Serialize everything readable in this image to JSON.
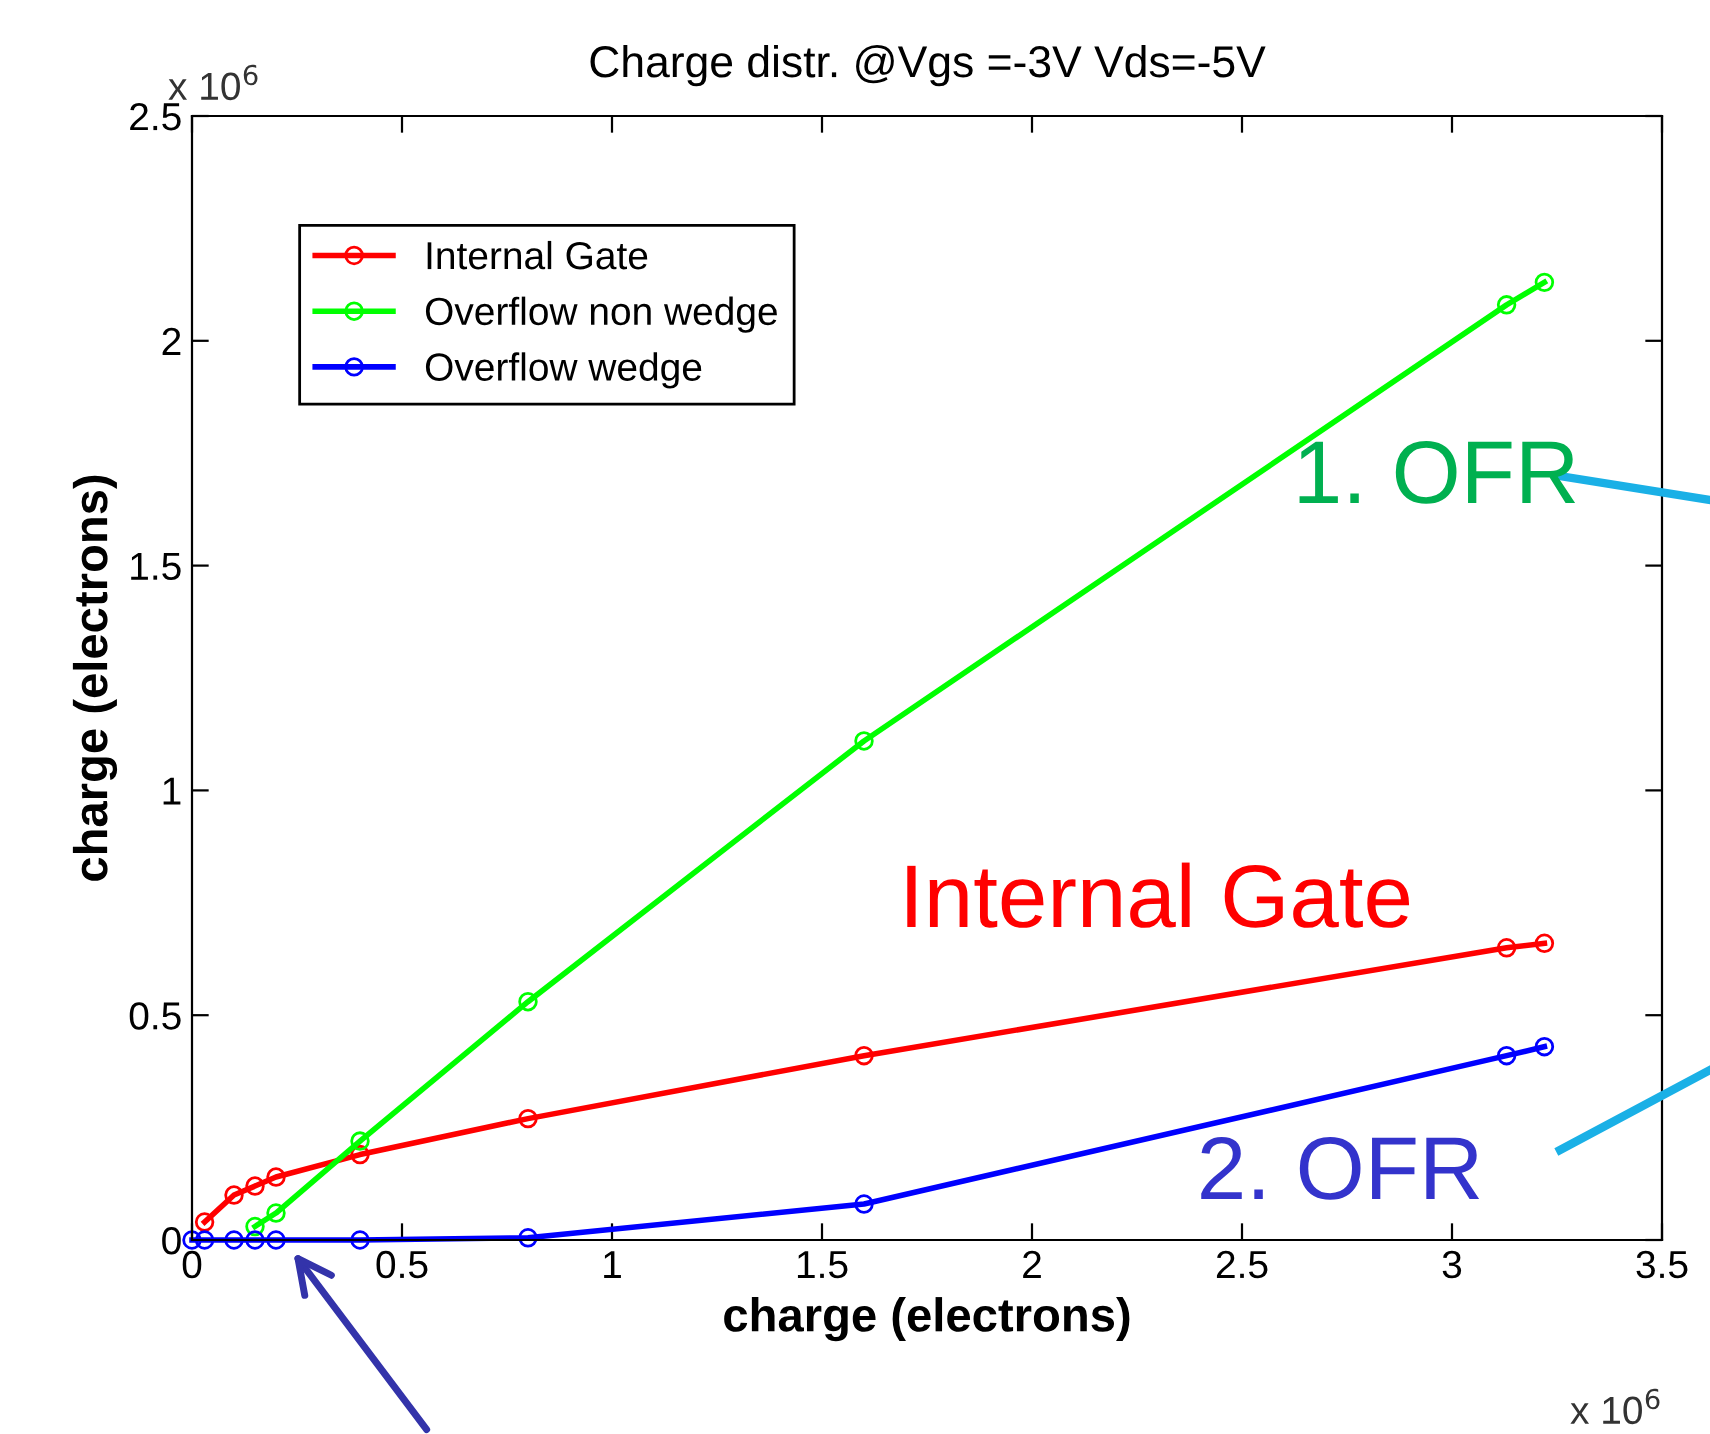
{
  "chart_data": {
    "type": "line",
    "title": "Charge distr. @Vgs =-3V Vds=-5V",
    "xlabel": "charge (electrons)",
    "ylabel": "charge (electrons)",
    "series": [
      {
        "name": "Internal Gate",
        "color": "#ff0000",
        "x": [
          0.03,
          0.1,
          0.15,
          0.2,
          0.4,
          0.8,
          1.6,
          3.13,
          3.22
        ],
        "values": [
          0.04,
          0.1,
          0.12,
          0.14,
          0.19,
          0.27,
          0.41,
          0.65,
          0.66
        ]
      },
      {
        "name": "Overflow non wedge",
        "color": "#00ff00",
        "x": [
          0.15,
          0.2,
          0.4,
          0.8,
          1.6,
          3.13,
          3.22
        ],
        "values": [
          0.03,
          0.06,
          0.22,
          0.53,
          1.11,
          2.08,
          2.13
        ]
      },
      {
        "name": "Overflow wedge",
        "color": "#0000ff",
        "x": [
          0,
          0.03,
          0.1,
          0.15,
          0.2,
          0.4,
          0.8,
          1.6,
          3.13,
          3.22
        ],
        "values": [
          0,
          0,
          0,
          0,
          0,
          0,
          0.005,
          0.08,
          0.41,
          0.43
        ]
      }
    ],
    "xlim": [
      0,
      3.5
    ],
    "xticks": [
      0,
      0.5,
      1,
      1.5,
      2,
      2.5,
      3,
      3.5
    ],
    "ylim": [
      0,
      2.5
    ],
    "yticks": [
      0,
      0.5,
      1,
      1.5,
      2,
      2.5
    ],
    "marker": "circle",
    "legend": "top left",
    "grid": false,
    "annotations": [
      "x 10$^{6}$",
      "x 10$^{6}$",
      "Internal Gate",
      "1. OFR",
      "2. OFR"
    ]
  }
}
